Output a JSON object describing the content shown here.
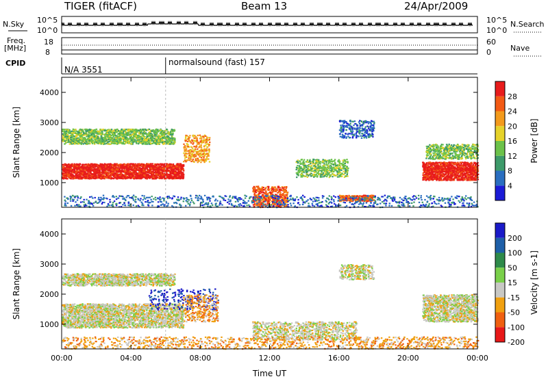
{
  "header": {
    "radar": "TIGER (fitACF)",
    "beam": "Beam 13",
    "date": "24/Apr/2009"
  },
  "summary_panel": {
    "nsky_label": "N.Sky",
    "nsearch_label": "N.Search",
    "power_ticks_left": [
      "10^5",
      "10^0"
    ],
    "power_ticks_right": [
      "10^5",
      "10^0"
    ],
    "freq_label_line1": "Freq.",
    "freq_label_line2": "[MHz]",
    "freq_ticks": [
      "18",
      "8"
    ],
    "nave_label": "Nave",
    "nave_ticks": [
      "60",
      "0"
    ],
    "cpid_label": "CPID",
    "cpid_segments": [
      {
        "name": "N/A",
        "id": "3551",
        "start_hour": 0
      },
      {
        "name": "normalsound (fast)",
        "id": "157",
        "start_hour": 6
      }
    ]
  },
  "chart_data": [
    {
      "type": "heatmap",
      "title": "",
      "xlabel": "Time UT",
      "ylabel": "Slant Range [km]",
      "x_ticks": [
        "00:00",
        "04:00",
        "08:00",
        "12:00",
        "16:00",
        "20:00",
        "00:00"
      ],
      "x_range_hours": [
        0,
        24
      ],
      "y_ticks": [
        1000,
        2000,
        3000,
        4000
      ],
      "ylim": [
        180,
        4500
      ],
      "colorbar": {
        "label": "Power [dB]",
        "ticks": [
          4,
          8,
          12,
          16,
          20,
          24,
          28
        ],
        "colors": [
          "#1b1bd6",
          "#2a6ec0",
          "#3d9a6a",
          "#6cc24a",
          "#e6d22a",
          "#f39a1c",
          "#f35a14",
          "#e81c1c"
        ]
      },
      "features": [
        {
          "desc": "strong band",
          "start_h": 0.0,
          "end_h": 7.0,
          "range_km": 1400,
          "value_db": 28
        },
        {
          "desc": "upper band",
          "start_h": 0.0,
          "end_h": 6.5,
          "range_km": 2500,
          "value_db": 14
        },
        {
          "desc": "late band",
          "start_h": 20.8,
          "end_h": 24.0,
          "range_km": 1450,
          "value_db": 26
        }
      ]
    },
    {
      "type": "heatmap",
      "title": "",
      "xlabel": "Time UT",
      "ylabel": "Slant Range [km]",
      "x_ticks": [
        "00:00",
        "04:00",
        "08:00",
        "12:00",
        "16:00",
        "20:00",
        "00:00"
      ],
      "x_range_hours": [
        0,
        24
      ],
      "y_ticks": [
        1000,
        2000,
        3000,
        4000
      ],
      "ylim": [
        180,
        4500
      ],
      "colorbar": {
        "label": "Velocity [m s-1]",
        "ticks": [
          200,
          100,
          50,
          15,
          -15,
          -50,
          -100,
          -200
        ],
        "colors": [
          "#1a1ac8",
          "#1e5fa8",
          "#2e8a4a",
          "#7ad04a",
          "#c8c8c4",
          "#f0a010",
          "#f06010",
          "#e81818"
        ]
      },
      "features": [
        {
          "desc": "ground scatter",
          "start_h": 0.0,
          "end_h": 7.0,
          "range_km": 1400,
          "value_ms": 0
        },
        {
          "desc": "late ground scatter",
          "start_h": 20.8,
          "end_h": 24.0,
          "range_km": 1450,
          "value_ms": 0
        }
      ]
    }
  ]
}
